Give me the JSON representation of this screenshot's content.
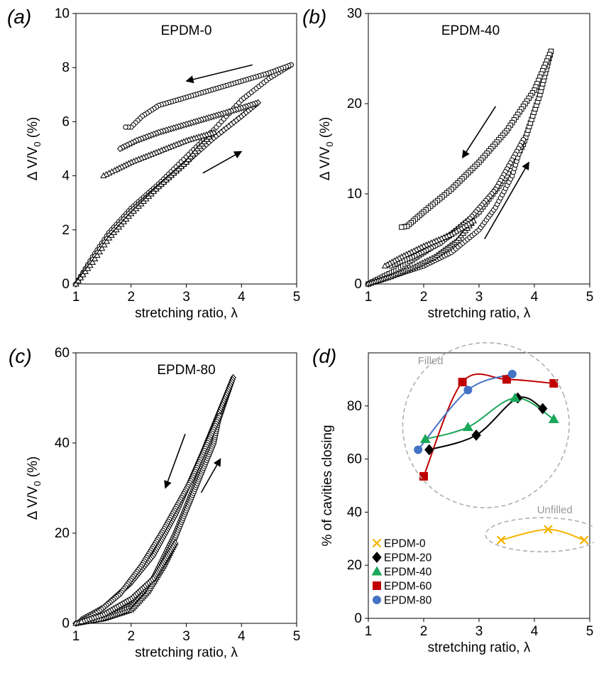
{
  "chart_data": [
    {
      "panel_label": "(a)",
      "type": "scatter",
      "title": "EPDM-0",
      "xlabel": "stretching ratio, λ",
      "ylabel": "Δ V/V0 (%)",
      "xlim": [
        1,
        5
      ],
      "ylim": [
        0,
        10
      ],
      "xticks": [
        "1",
        "2",
        "3",
        "4",
        "5"
      ],
      "yticks": [
        "0",
        "2",
        "4",
        "6",
        "8",
        "10"
      ],
      "grid": false,
      "series": [
        {
          "marker": "circle",
          "loading": [
            [
              1,
              0
            ],
            [
              1.3,
              1.0
            ],
            [
              1.6,
              1.9
            ],
            [
              2,
              2.8
            ],
            [
              2.5,
              3.7
            ],
            [
              3,
              4.7
            ],
            [
              3.5,
              5.7
            ],
            [
              4,
              6.8
            ],
            [
              4.5,
              7.6
            ],
            [
              4.9,
              8.1
            ]
          ],
          "unloading": [
            [
              4.9,
              8.1
            ],
            [
              4.5,
              7.8
            ],
            [
              4,
              7.5
            ],
            [
              3.5,
              7.2
            ],
            [
              3,
              6.9
            ],
            [
              2.5,
              6.6
            ],
            [
              2.2,
              6.2
            ],
            [
              2,
              5.8
            ],
            [
              1.9,
              5.8
            ]
          ]
        },
        {
          "marker": "diamond",
          "loading": [
            [
              1,
              0
            ],
            [
              1.3,
              0.9
            ],
            [
              1.6,
              1.8
            ],
            [
              2,
              2.7
            ],
            [
              2.5,
              3.6
            ],
            [
              3,
              4.5
            ],
            [
              3.5,
              5.4
            ],
            [
              4,
              6.2
            ],
            [
              4.3,
              6.7
            ]
          ],
          "unloading": [
            [
              4.3,
              6.7
            ],
            [
              4,
              6.5
            ],
            [
              3.5,
              6.2
            ],
            [
              3,
              5.9
            ],
            [
              2.5,
              5.6
            ],
            [
              2.1,
              5.3
            ],
            [
              1.8,
              5.0
            ]
          ]
        },
        {
          "marker": "triangle",
          "loading": [
            [
              1,
              0
            ],
            [
              1.3,
              0.8
            ],
            [
              1.6,
              1.7
            ],
            [
              2,
              2.6
            ],
            [
              2.5,
              3.6
            ],
            [
              3,
              4.5
            ],
            [
              3.2,
              5.0
            ],
            [
              3.5,
              5.6
            ]
          ],
          "unloading": [
            [
              3.5,
              5.6
            ],
            [
              3,
              5.3
            ],
            [
              2.5,
              4.9
            ],
            [
              2,
              4.5
            ],
            [
              1.7,
              4.2
            ],
            [
              1.5,
              4.0
            ]
          ]
        }
      ],
      "annotations": [
        {
          "type": "arrow",
          "from": [
            3.3,
            4.1
          ],
          "to": [
            4.0,
            4.9
          ]
        },
        {
          "type": "arrow",
          "from": [
            4.2,
            8.1
          ],
          "to": [
            3.0,
            7.5
          ]
        }
      ]
    },
    {
      "panel_label": "(b)",
      "type": "scatter",
      "title": "EPDM-40",
      "xlabel": "stretching ratio, λ",
      "ylabel": "Δ V/V0 (%)",
      "xlim": [
        1,
        5
      ],
      "ylim": [
        0,
        30
      ],
      "xticks": [
        "1",
        "2",
        "3",
        "4",
        "5"
      ],
      "yticks": [
        "0",
        "10",
        "20",
        "30"
      ],
      "grid": false,
      "series": [
        {
          "marker": "square",
          "loading": [
            [
              1,
              0
            ],
            [
              1.5,
              1.5
            ],
            [
              2,
              3.5
            ],
            [
              2.5,
              5.5
            ],
            [
              3,
              8.0
            ],
            [
              3.5,
              12.0
            ],
            [
              3.8,
              15.5
            ],
            [
              4.1,
              21.0
            ],
            [
              4.3,
              25.8
            ]
          ],
          "unloading": [
            [
              4.3,
              25.8
            ],
            [
              4.0,
              21.5
            ],
            [
              3.5,
              17.0
            ],
            [
              3.0,
              13.5
            ],
            [
              2.5,
              10.5
            ],
            [
              2.0,
              8.0
            ],
            [
              1.7,
              6.4
            ],
            [
              1.6,
              6.3
            ]
          ]
        },
        {
          "marker": "circle",
          "loading": [
            [
              1,
              0
            ],
            [
              1.5,
              1.0
            ],
            [
              2,
              2.0
            ],
            [
              2.5,
              3.5
            ],
            [
              3,
              6.0
            ],
            [
              3.3,
              8.5
            ],
            [
              3.6,
              12.0
            ],
            [
              3.8,
              16.0
            ]
          ],
          "unloading": [
            [
              3.8,
              16.0
            ],
            [
              3.3,
              10.5
            ],
            [
              2.8,
              7.0
            ],
            [
              2.3,
              4.5
            ],
            [
              1.8,
              3.0
            ],
            [
              1.4,
              2.0
            ]
          ]
        },
        {
          "marker": "triangle",
          "loading": [
            [
              1,
              0
            ],
            [
              1.4,
              0.8
            ],
            [
              1.8,
              1.8
            ],
            [
              2.2,
              3.0
            ],
            [
              2.6,
              4.8
            ],
            [
              2.9,
              7.0
            ]
          ],
          "unloading": [
            [
              2.9,
              7.0
            ],
            [
              2.5,
              5.5
            ],
            [
              2.0,
              4.2
            ],
            [
              1.6,
              3.0
            ],
            [
              1.3,
              2.0
            ]
          ]
        }
      ],
      "annotations": [
        {
          "type": "arrow",
          "from": [
            3.1,
            5.0
          ],
          "to": [
            3.9,
            13.5
          ]
        },
        {
          "type": "arrow",
          "from": [
            3.3,
            19.7
          ],
          "to": [
            2.7,
            14.0
          ]
        }
      ]
    },
    {
      "panel_label": "(c)",
      "type": "scatter",
      "title": "EPDM-80",
      "xlabel": "stretching ratio, λ",
      "ylabel": "Δ V/V0 (%)",
      "xlim": [
        1,
        5
      ],
      "ylim": [
        0,
        60
      ],
      "xticks": [
        "1",
        "2",
        "3",
        "4",
        "5"
      ],
      "yticks": [
        "0",
        "20",
        "40",
        "60"
      ],
      "grid": false,
      "series": [
        {
          "marker": "diamond",
          "loading": [
            [
              1,
              0
            ],
            [
              1.5,
              1.5
            ],
            [
              2,
              4.0
            ],
            [
              2.4,
              10.0
            ],
            [
              2.8,
              20.0
            ],
            [
              3.2,
              32.0
            ],
            [
              3.5,
              42.0
            ],
            [
              3.85,
              54.5
            ]
          ],
          "unloading": [
            [
              3.85,
              54.5
            ],
            [
              3.3,
              38.0
            ],
            [
              2.8,
              24.0
            ],
            [
              2.4,
              15.0
            ],
            [
              2.0,
              9.0
            ],
            [
              1.5,
              3.5
            ],
            [
              1.1,
              0.8
            ]
          ]
        },
        {
          "marker": "circle",
          "loading": [
            [
              1,
              0
            ],
            [
              1.5,
              1.2
            ],
            [
              2,
              3.5
            ],
            [
              2.4,
              9.0
            ],
            [
              2.8,
              19.0
            ],
            [
              3.2,
              31.0
            ],
            [
              3.5,
              40.0
            ],
            [
              3.6,
              46.0
            ]
          ],
          "unloading": [
            [
              3.6,
              46.0
            ],
            [
              3.1,
              32.0
            ],
            [
              2.6,
              21.0
            ],
            [
              2.2,
              13.0
            ],
            [
              1.8,
              6.5
            ],
            [
              1.4,
              2.5
            ],
            [
              1.1,
              0.5
            ]
          ]
        },
        {
          "marker": "triangle",
          "loading": [
            [
              1,
              0
            ],
            [
              1.5,
              1.0
            ],
            [
              2,
              3.0
            ],
            [
              2.3,
              7.0
            ],
            [
              2.6,
              13.0
            ],
            [
              2.8,
              18.0
            ]
          ],
          "unloading": [
            [
              2.8,
              18.0
            ],
            [
              2.4,
              10.0
            ],
            [
              2.0,
              5.5
            ],
            [
              1.5,
              2.0
            ],
            [
              1.1,
              0.4
            ]
          ]
        }
      ],
      "annotations": [
        {
          "type": "arrow",
          "from": [
            3.27,
            29.0
          ],
          "to": [
            3.62,
            36.5
          ]
        },
        {
          "type": "arrow",
          "from": [
            2.98,
            42.0
          ],
          "to": [
            2.62,
            30.0
          ]
        }
      ]
    },
    {
      "panel_label": "(d)",
      "type": "scatter",
      "title": "",
      "xlabel": "stretching ratio, λ",
      "ylabel": "% of cavities closing",
      "xlim": [
        1,
        5
      ],
      "ylim": [
        0,
        100
      ],
      "xticks": [
        "1",
        "2",
        "3",
        "4",
        "5"
      ],
      "yticks": [
        "0",
        "20",
        "40",
        "60",
        "80"
      ],
      "grid": false,
      "legend": {
        "position": "bottom-left"
      },
      "series": [
        {
          "name": "EPDM-0",
          "color": "#f5b400",
          "marker": "x",
          "points": [
            [
              3.4,
              29.5
            ],
            [
              4.25,
              33.5
            ],
            [
              4.9,
              29.5
            ]
          ]
        },
        {
          "name": "EPDM-20",
          "color": "#000000",
          "marker": "diamond",
          "points": [
            [
              2.1,
              63.5
            ],
            [
              2.95,
              69.0
            ],
            [
              3.7,
              83.0
            ],
            [
              4.15,
              79.0
            ]
          ]
        },
        {
          "name": "EPDM-40",
          "color": "#1aa85a",
          "marker": "triangle",
          "points": [
            [
              2.03,
              67.5
            ],
            [
              2.8,
              72.0
            ],
            [
              3.65,
              83.0
            ],
            [
              4.35,
              75.0
            ]
          ]
        },
        {
          "name": "EPDM-60",
          "color": "#c00000",
          "marker": "square",
          "points": [
            [
              2.0,
              53.5
            ],
            [
              2.7,
              89.0
            ],
            [
              3.5,
              90.0
            ],
            [
              4.35,
              88.5
            ]
          ]
        },
        {
          "name": "EPDM-80",
          "color": "#4472c4",
          "marker": "circle",
          "points": [
            [
              1.9,
              63.5
            ],
            [
              2.8,
              86.0
            ],
            [
              3.6,
              92.0
            ]
          ]
        }
      ],
      "group_labels": [
        "Filled",
        "Unfilled"
      ]
    }
  ]
}
